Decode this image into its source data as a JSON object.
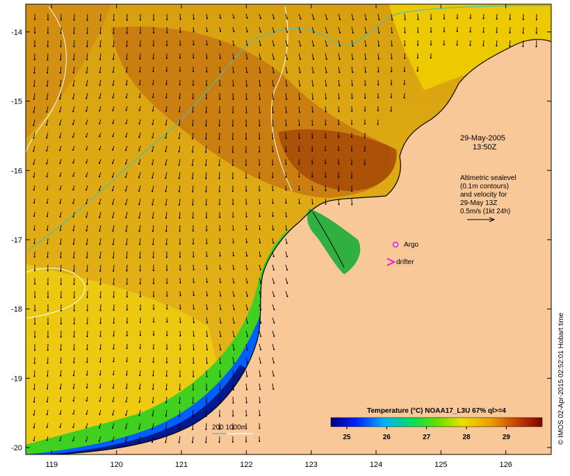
{
  "map": {
    "date_label": "29-May-2005",
    "time_label": "13:50Z",
    "legend_lines": [
      "Altimetric sealevel",
      "(0.1m contours)",
      "and velocity for",
      "29-May 13Z",
      "0.5m/s (1kt 24h)"
    ],
    "argo_label": "Argo",
    "drifter_label": "drifter",
    "depth_label": "200  1000m",
    "credit": "© IMOS 02-Apr-2015 02:52:01 Hobart time",
    "colors": {
      "land": "#f8c898",
      "argo": "#e020e0",
      "drifter": "#e020e0",
      "isobath_200": "#40c0c0",
      "isobath_1000": "#ffffff",
      "coast": "#000000"
    }
  },
  "axes": {
    "lon_ticks": [
      "119",
      "120",
      "121",
      "122",
      "123",
      "124",
      "125",
      "126"
    ],
    "lat_ticks": [
      "-14",
      "-15",
      "-16",
      "-17",
      "-18",
      "-19",
      "-20"
    ],
    "lon_range": [
      118.6,
      126.7
    ],
    "lat_range": [
      -20.1,
      -13.6
    ]
  },
  "colorbar": {
    "title": "Temperature (°C) NOAA17_L3U 67% ql>=4",
    "ticks": [
      "25",
      "26",
      "27",
      "28",
      "29"
    ],
    "range": [
      24.6,
      29.9
    ]
  }
}
